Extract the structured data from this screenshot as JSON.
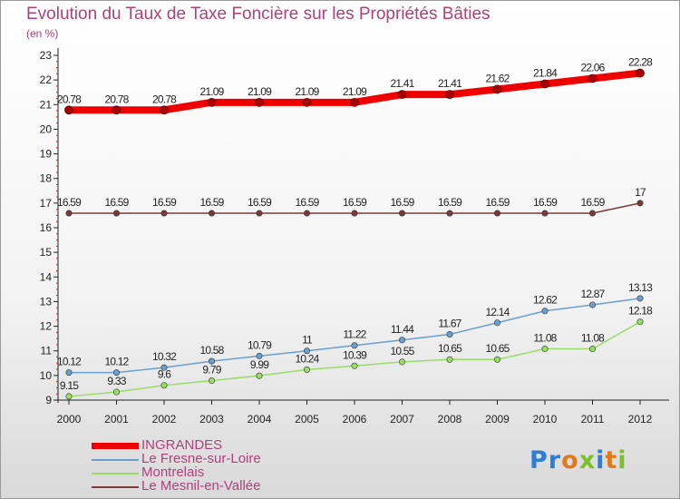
{
  "title": "Evolution du Taux de Taxe Foncière sur les Propriétés Bâties",
  "unit_label": "(en %)",
  "logo": {
    "text": "Proxiti",
    "letters": [
      "P",
      "r",
      "o",
      "x",
      "i",
      "t",
      "i"
    ],
    "colors": [
      "#2a7fd6",
      "#2a7fd6",
      "#e07a1a",
      "#7bbf2a",
      "#2a7fd6",
      "#e07a1a",
      "#7bbf2a"
    ]
  },
  "chart_data": {
    "type": "line",
    "title": "Evolution du Taux de Taxe Foncière sur les Propriétés Bâties",
    "ylabel": "(en %)",
    "ylim": [
      9,
      23
    ],
    "yticks": [
      "9",
      "10",
      "11",
      "12",
      "13",
      "14",
      "15",
      "16",
      "17",
      "18",
      "19",
      "20",
      "21",
      "22",
      "23"
    ],
    "categories": [
      "2000",
      "2001",
      "2002",
      "2003",
      "2004",
      "2005",
      "2006",
      "2007",
      "2008",
      "2009",
      "2010",
      "2011",
      "2012"
    ],
    "grid": false,
    "legend_position": "bottom-left",
    "series": [
      {
        "name": "INGRANDES",
        "color": "#ee0000",
        "thick": true,
        "values": [
          20.78,
          20.78,
          20.78,
          21.09,
          21.09,
          21.09,
          21.09,
          21.41,
          21.41,
          21.62,
          21.84,
          22.06,
          22.28
        ],
        "labels": [
          "20.78",
          "20.78",
          "20.78",
          "21.09",
          "21.09",
          "21.09",
          "21.09",
          "21.41",
          "21.41",
          "21.62",
          "21.84",
          "22.06",
          "22.28"
        ]
      },
      {
        "name": "Le Fresne-sur-Loire",
        "color": "#6a9fd0",
        "thick": false,
        "values": [
          10.12,
          10.12,
          10.32,
          10.58,
          10.79,
          11,
          11.22,
          11.44,
          11.67,
          12.14,
          12.62,
          12.87,
          13.13
        ],
        "labels": [
          "10.12",
          "10.12",
          "10.32",
          "10.58",
          "10.79",
          "11",
          "11.22",
          "11.44",
          "11.67",
          "12.14",
          "12.62",
          "12.87",
          "13.13"
        ]
      },
      {
        "name": "Montrelais",
        "color": "#99dd66",
        "thick": false,
        "values": [
          9.15,
          9.33,
          9.6,
          9.79,
          9.99,
          10.24,
          10.39,
          10.55,
          10.65,
          10.65,
          11.08,
          11.08,
          12.18
        ],
        "labels": [
          "9.15",
          "9.33",
          "9.6",
          "9.79",
          "9.99",
          "10.24",
          "10.39",
          "10.55",
          "10.65",
          "10.65",
          "11.08",
          "11.08",
          "12.18"
        ]
      },
      {
        "name": "Le Mesnil-en-Vallée",
        "color": "#7a3a3a",
        "thick": false,
        "values": [
          16.59,
          16.59,
          16.59,
          16.59,
          16.59,
          16.59,
          16.59,
          16.59,
          16.59,
          16.59,
          16.59,
          16.59,
          17
        ],
        "labels": [
          "16.59",
          "16.59",
          "16.59",
          "16.59",
          "16.59",
          "16.59",
          "16.59",
          "16.59",
          "16.59",
          "16.59",
          "16.59",
          "16.59",
          "17"
        ]
      }
    ]
  }
}
